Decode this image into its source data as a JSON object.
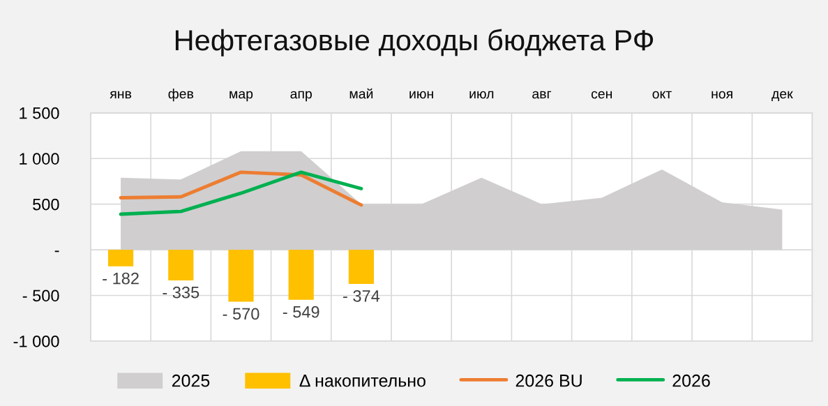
{
  "chart_data": {
    "type": "area",
    "title": "Нефтегазовые доходы бюджета РФ",
    "categories": [
      "янв",
      "фев",
      "мар",
      "апр",
      "май",
      "июн",
      "июл",
      "авг",
      "сен",
      "окт",
      "ноя",
      "дек"
    ],
    "series": [
      {
        "name": "2025",
        "color": "#d0cecf",
        "values": [
          790,
          770,
          1080,
          1080,
          500,
          500,
          790,
          500,
          570,
          880,
          520,
          440
        ]
      },
      {
        "name": "Δ накопительно",
        "type": "bar",
        "color": "#ffc000",
        "values": [
          -182,
          -335,
          -570,
          -549,
          -374,
          null,
          null,
          null,
          null,
          null,
          null,
          null
        ],
        "value_labels": [
          "- 182",
          "- 335",
          "- 570",
          "- 549",
          "- 374",
          null,
          null,
          null,
          null,
          null,
          null,
          null
        ]
      },
      {
        "name": "2026 BU",
        "type": "line",
        "color": "#ed7d31",
        "values": [
          570,
          580,
          850,
          820,
          490,
          null,
          null,
          null,
          null,
          null,
          null,
          null
        ]
      },
      {
        "name": "2026",
        "type": "line",
        "color": "#00b050",
        "values": [
          390,
          420,
          620,
          850,
          670,
          null,
          null,
          null,
          null,
          null,
          null,
          null
        ]
      }
    ],
    "ylim": [
      -1000,
      1500
    ],
    "yticks": [
      {
        "value": -1000,
        "label": "-1 000"
      },
      {
        "value": -500,
        "label": "- 500"
      },
      {
        "value": 0,
        "label": "-"
      },
      {
        "value": 500,
        "label": "500"
      },
      {
        "value": 1000,
        "label": "1 000"
      },
      {
        "value": 1500,
        "label": "1 500"
      }
    ],
    "grid": true,
    "legend": "bottom"
  }
}
